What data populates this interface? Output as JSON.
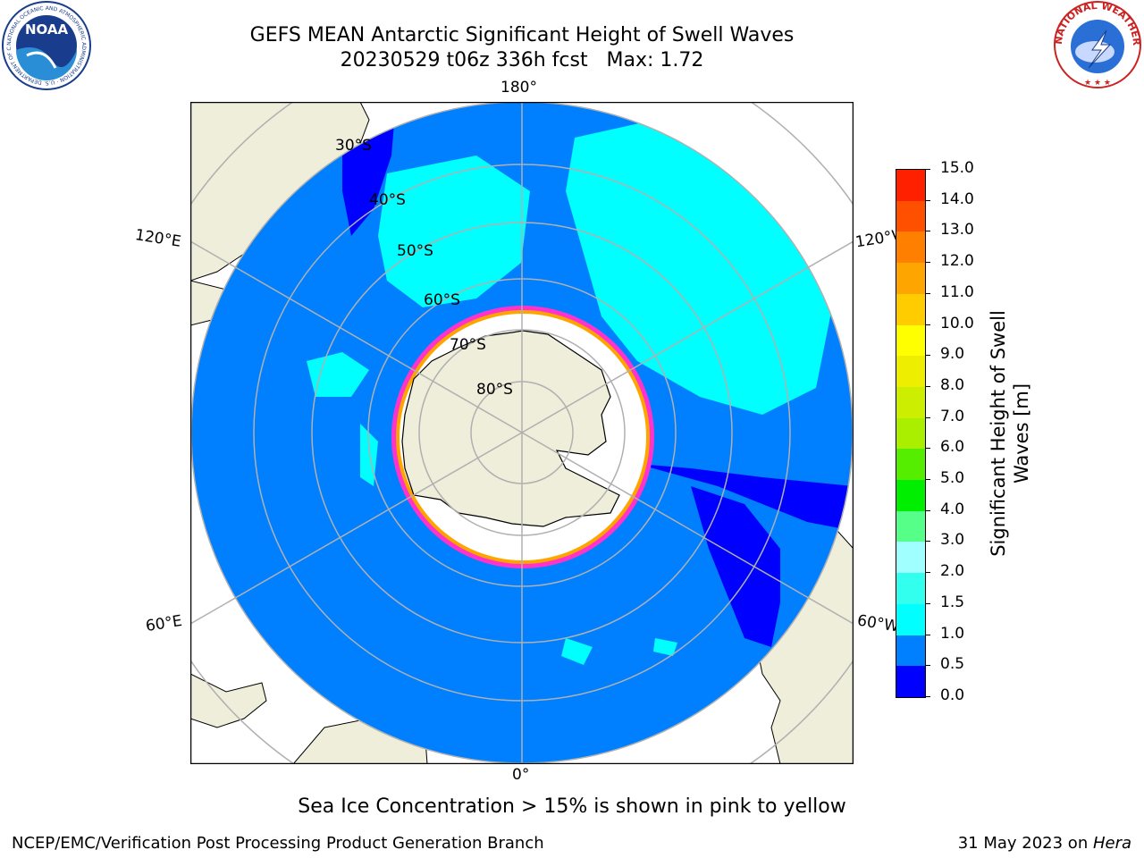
{
  "title": {
    "line1": "GEFS MEAN Antarctic Significant Height of Swell Waves",
    "line2": "20230529 t06z 336h fcst   Max: 1.72"
  },
  "logos": {
    "noaa": {
      "text": "NOAA",
      "ring_text": "NATIONAL OCEANIC AND ATMOSPHERIC ADMINISTRATION · U.S. DEPARTMENT OF COMMERCE"
    },
    "nws": {
      "ring_text": "NATIONAL WEATHER SERVICE"
    }
  },
  "map": {
    "projection": "south-polar-stereographic",
    "longitude_labels": {
      "top": "180°",
      "bottom": "0°",
      "upper_left": "120°E",
      "upper_right": "120°W",
      "lower_left": "60°E",
      "lower_right": "60°W"
    },
    "latitude_labels": [
      "30°S",
      "40°S",
      "50°S",
      "60°S",
      "70°S",
      "80°S"
    ],
    "colors": {
      "land": "#eeeedb",
      "ocean_low": "#0080ff",
      "ocean_zero": "#0000ff",
      "ocean_mid": "#00ffff",
      "ice": "#ffffff",
      "ice_edge": "#ff33cc",
      "grid": "#b0b0b0"
    }
  },
  "colorbar": {
    "label_line1": "Significant Height of Swell",
    "label_line2": "Waves [m]",
    "ticks": [
      "0.0",
      "0.5",
      "1.0",
      "1.5",
      "2.0",
      "3.0",
      "4.0",
      "5.0",
      "6.0",
      "7.0",
      "8.0",
      "9.0",
      "10.0",
      "11.0",
      "12.0",
      "13.0",
      "14.0",
      "15.0"
    ],
    "colors": [
      "#0000ff",
      "#0080ff",
      "#00ffff",
      "#33ffee",
      "#a0ffff",
      "#55ff88",
      "#00ee00",
      "#55ee00",
      "#aaee00",
      "#ccee00",
      "#eeee00",
      "#ffff00",
      "#ffcc00",
      "#ffa500",
      "#ff8000",
      "#ff5000",
      "#ff2000"
    ]
  },
  "note": "Sea Ice Concentration > 15% is shown in pink to yellow",
  "footer": {
    "left": "NCEP/EMC/Verification Post Processing Product Generation Branch",
    "right_prefix": "31 May 2023 on ",
    "right_host": "Hera"
  }
}
